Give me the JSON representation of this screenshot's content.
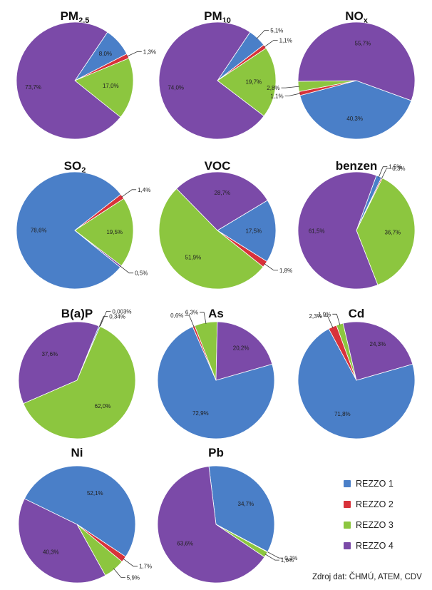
{
  "legend": [
    {
      "label": "REZZO 1",
      "color": "#4a7fc8"
    },
    {
      "label": "REZZO 2",
      "color": "#d8323a"
    },
    {
      "label": "REZZO 3",
      "color": "#8cc63f"
    },
    {
      "label": "REZZO 4",
      "color": "#7b4aa8"
    }
  ],
  "source": "Zdroj dat: ČHMÚ, ATEM, CDV",
  "chart_data": [
    {
      "type": "pie",
      "title": "PM",
      "title_sub": "2,5",
      "title_sub_pos": "sub",
      "values": [
        8.0,
        1.3,
        17.0,
        73.7
      ],
      "labels": [
        "8,0%",
        "1,3%",
        "17,0%",
        "73,7%"
      ]
    },
    {
      "type": "pie",
      "title": "PM",
      "title_sub": "10",
      "title_sub_pos": "sub",
      "values": [
        5.1,
        1.1,
        19.7,
        74.0
      ],
      "labels": [
        "5,1%",
        "1,1%",
        "19,7%",
        "74,0%"
      ]
    },
    {
      "type": "pie",
      "title": "NO",
      "title_sub": "x",
      "title_sub_pos": "sub",
      "values": [
        40.3,
        1.1,
        2.8,
        55.7
      ],
      "labels": [
        "40,3%",
        "1,1%",
        "2,8%",
        "55,7%"
      ]
    },
    {
      "type": "pie",
      "title": "SO",
      "title_sub": "2",
      "title_sub_pos": "sub",
      "values": [
        78.6,
        1.4,
        19.5,
        0.5
      ],
      "labels": [
        "78,6%",
        "1,4%",
        "19,5%",
        "0,5%"
      ]
    },
    {
      "type": "pie",
      "title": "VOC",
      "title_sub": "",
      "title_sub_pos": "sub",
      "values": [
        17.5,
        1.8,
        51.9,
        28.7
      ],
      "labels": [
        "17,5%",
        "1,8%",
        "51,9%",
        "28,7%"
      ]
    },
    {
      "type": "pie",
      "title": "benzen",
      "title_sub": "",
      "title_sub_pos": "sub",
      "values": [
        1.5,
        0.3,
        36.7,
        61.5
      ],
      "labels": [
        "1,5%",
        "0,3%",
        "36,7%",
        "61,5%"
      ]
    },
    {
      "type": "pie",
      "title": "B(a)P",
      "title_sub": "",
      "title_sub_pos": "sub",
      "values": [
        0.34,
        0.003,
        62.0,
        37.6
      ],
      "labels": [
        "0,34%",
        "0,003%",
        "62,0%",
        "37,6%"
      ]
    },
    {
      "type": "pie",
      "title": "As",
      "title_sub": "",
      "title_sub_pos": "sub",
      "values": [
        72.9,
        0.6,
        6.3,
        20.2
      ],
      "labels": [
        "72,9%",
        "0,6%",
        "6,3%",
        "20,2%"
      ]
    },
    {
      "type": "pie",
      "title": "Cd",
      "title_sub": "",
      "title_sub_pos": "sub",
      "values": [
        71.8,
        2.3,
        1.9,
        24.3
      ],
      "labels": [
        "71,8%",
        "2,3%",
        "1,9%",
        "24,3%"
      ]
    },
    {
      "type": "pie",
      "title": "Ni",
      "title_sub": "",
      "title_sub_pos": "sub",
      "values": [
        52.1,
        1.7,
        5.9,
        40.3
      ],
      "labels": [
        "52,1%",
        "1,7%",
        "5,9%",
        "40,3%"
      ]
    },
    {
      "type": "pie",
      "title": "Pb",
      "title_sub": "",
      "title_sub_pos": "sub",
      "values": [
        34.7,
        0.1,
        1.6,
        63.6
      ],
      "labels": [
        "34,7%",
        "0,1%",
        "1,6%",
        "63,6%"
      ]
    }
  ]
}
